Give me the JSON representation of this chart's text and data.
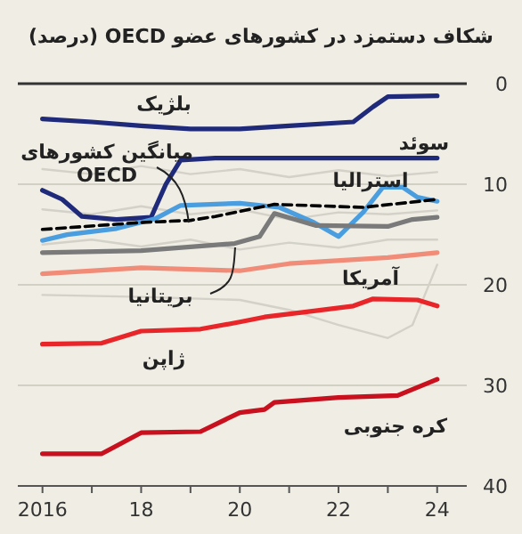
{
  "chart_data": {
    "type": "line",
    "title": "شکاف دستمزد در کشورهای عضو OECD (درصد)",
    "xlim": [
      2015.5,
      2024.6
    ],
    "ylim": [
      40,
      0
    ],
    "xticks": [
      2016,
      {
        "value": 2017,
        "label": null
      },
      {
        "value": 2018,
        "label": "18"
      },
      {
        "value": 2019,
        "label": null
      },
      {
        "value": 2020,
        "label": "20"
      },
      {
        "value": 2021,
        "label": null
      },
      {
        "value": 2022,
        "label": "22"
      },
      {
        "value": 2023,
        "label": null
      },
      {
        "value": 2024,
        "label": "24"
      }
    ],
    "yticks": [
      0,
      10,
      20,
      30,
      40
    ],
    "grid": "y",
    "marker": "none",
    "series": [
      {
        "color": "#d3d1c8",
        "x": [
          2016,
          2017,
          2018,
          2019,
          2020,
          2021,
          2022,
          2023,
          2024
        ],
        "values": [
          8.5,
          9.0,
          8.2,
          9.0,
          8.5,
          9.3,
          8.6,
          9.2,
          8.8
        ]
      },
      {
        "color": "#d3d1c8",
        "x": [
          2016,
          2017,
          2018,
          2019,
          2020,
          2021,
          2022,
          2023,
          2024
        ],
        "values": [
          12.5,
          13.0,
          12.2,
          13.0,
          12.5,
          13.5,
          12.8,
          13.0,
          12.6
        ]
      },
      {
        "color": "#d3d1c8",
        "x": [
          2016,
          2017,
          2018,
          2019,
          2020,
          2021,
          2022,
          2023,
          2024
        ],
        "values": [
          16.0,
          15.5,
          16.2,
          15.5,
          16.5,
          15.8,
          16.3,
          15.5,
          15.5
        ]
      },
      {
        "color": "#d3d1c8",
        "x": [
          2016,
          2018,
          2020,
          2021,
          2022,
          2023,
          2023.5,
          2024
        ],
        "values": [
          21.0,
          21.2,
          21.5,
          22.5,
          24.0,
          25.3,
          24.0,
          18.0
        ]
      },
      {
        "name": "بلژیک",
        "color": "#1f2a7a",
        "x": [
          2016,
          2017,
          2018,
          2019,
          2020,
          2021,
          2022,
          2022.3,
          2022.7,
          2023,
          2024
        ],
        "values": [
          3.5,
          3.8,
          4.2,
          4.5,
          4.5,
          4.2,
          3.9,
          3.8,
          2.3,
          1.3,
          1.2
        ]
      },
      {
        "name": "سوئد",
        "color": "#1f2a7a",
        "x": [
          2016,
          2016.4,
          2016.8,
          2017.5,
          2018.2,
          2018.5,
          2018.8,
          2019.5,
          2024
        ],
        "values": [
          10.6,
          11.5,
          13.2,
          13.5,
          13.3,
          10.0,
          7.6,
          7.4,
          7.4
        ]
      },
      {
        "name": "استرالیا",
        "color": "#4a9ee0",
        "x": [
          2016,
          2016.5,
          2017.5,
          2018.3,
          2018.8,
          2020,
          2020.8,
          2021.5,
          2022,
          2022.5,
          2022.9,
          2023.3,
          2023.6,
          2024
        ],
        "values": [
          15.6,
          15.0,
          14.4,
          13.4,
          12.1,
          11.9,
          12.3,
          13.8,
          15.2,
          12.8,
          10.3,
          10.3,
          11.3,
          11.7
        ]
      },
      {
        "name": "بریتانیا",
        "color": "#7a7a7a",
        "x": [
          2016,
          2018,
          2019.9,
          2020.4,
          2020.7,
          2021.55,
          2023,
          2023.5,
          2024
        ],
        "values": [
          16.8,
          16.6,
          15.9,
          15.2,
          12.9,
          14.1,
          14.2,
          13.5,
          13.3
        ]
      },
      {
        "name": "میانگین کشورهای OECD",
        "color": "#000000",
        "line_style": "dashed",
        "x": [
          2016,
          2018,
          2019,
          2019.5,
          2020.7,
          2022.5,
          2024
        ],
        "values": [
          14.5,
          13.8,
          13.6,
          13.2,
          12.0,
          12.3,
          11.5
        ]
      },
      {
        "name": "آمریکا",
        "color": "#f08c78",
        "x": [
          2016,
          2018,
          2020,
          2021,
          2023,
          2024
        ],
        "values": [
          18.9,
          18.3,
          18.6,
          17.9,
          17.3,
          16.8
        ]
      },
      {
        "name": "ژاپن",
        "color": "#e8262a",
        "x": [
          2016,
          2017.2,
          2018,
          2019.2,
          2020,
          2020.5,
          2021.5,
          2022.3,
          2022.7,
          2023.6,
          2024
        ],
        "values": [
          25.9,
          25.8,
          24.6,
          24.4,
          23.7,
          23.2,
          22.6,
          22.1,
          21.4,
          21.5,
          22.1
        ]
      },
      {
        "name": "کره جنوبی",
        "color": "#c8101e",
        "x": [
          2016,
          2017.2,
          2018,
          2019.2,
          2020,
          2020.5,
          2020.7,
          2022,
          2023.2,
          2024
        ],
        "values": [
          36.8,
          36.8,
          34.7,
          34.6,
          32.7,
          32.4,
          31.7,
          31.2,
          31.0,
          29.4
        ]
      }
    ]
  }
}
